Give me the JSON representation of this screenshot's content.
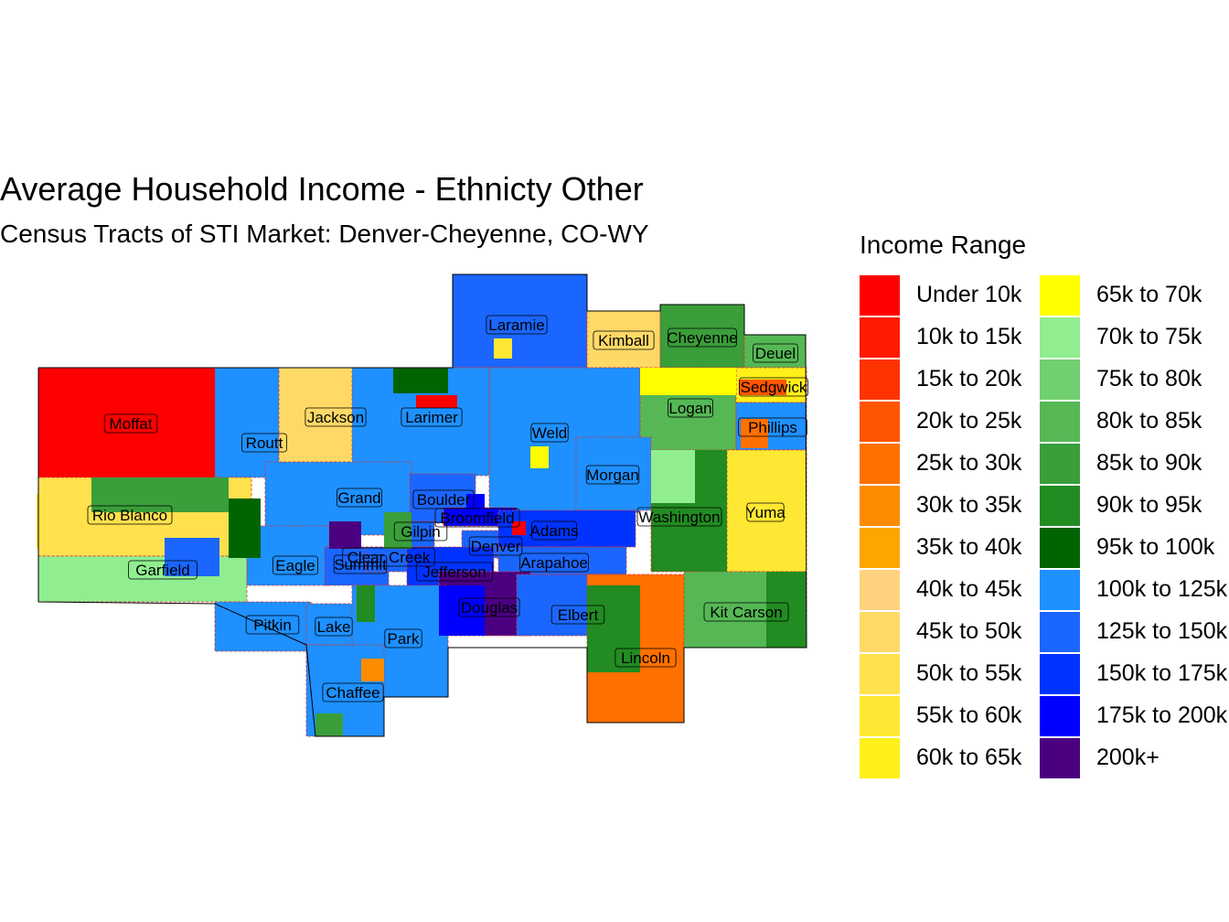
{
  "title": "Average Household Income - Ethnicty Other",
  "subtitle": "Census Tracts of STI Market: Denver-Cheyenne, CO-WY",
  "legend": {
    "title": "Income Range",
    "items": [
      {
        "label": "Under 10k",
        "color": "#FF0000"
      },
      {
        "label": "10k to 15k",
        "color": "#FF1A00"
      },
      {
        "label": "15k to 20k",
        "color": "#FF3300"
      },
      {
        "label": "20k to 25k",
        "color": "#FF5500"
      },
      {
        "label": "25k to 30k",
        "color": "#FF7000"
      },
      {
        "label": "30k to 35k",
        "color": "#FF8C00"
      },
      {
        "label": "35k to 40k",
        "color": "#FFA500"
      },
      {
        "label": "40k to 45k",
        "color": "#FFD27F"
      },
      {
        "label": "45k to 50k",
        "color": "#FFD966"
      },
      {
        "label": "50k to 55k",
        "color": "#FFE14D"
      },
      {
        "label": "55k to 60k",
        "color": "#FFE833"
      },
      {
        "label": "60k to 65k",
        "color": "#FFF01A"
      },
      {
        "label": "65k to 70k",
        "color": "#FFFF00"
      },
      {
        "label": "70k to 75k",
        "color": "#90EE90"
      },
      {
        "label": "75k to 80k",
        "color": "#70D070"
      },
      {
        "label": "80k to 85k",
        "color": "#55B855"
      },
      {
        "label": "85k to 90k",
        "color": "#3A9E3A"
      },
      {
        "label": "90k to 95k",
        "color": "#228B22"
      },
      {
        "label": "95k to 100k",
        "color": "#006400"
      },
      {
        "label": "100k to 125k",
        "color": "#1E90FF"
      },
      {
        "label": "125k to 150k",
        "color": "#1A66FF"
      },
      {
        "label": "150k to 175k",
        "color": "#0033FF"
      },
      {
        "label": "175k to 200k",
        "color": "#0000FF"
      },
      {
        "label": "200k+",
        "color": "#4B0082"
      }
    ]
  },
  "counties": [
    {
      "name": "Laramie",
      "fill": "#1A66FF"
    },
    {
      "name": "Kimball",
      "fill": "#FFD966"
    },
    {
      "name": "Cheyenne",
      "fill": "#3A9E3A"
    },
    {
      "name": "Deuel",
      "fill": "#55B855"
    },
    {
      "name": "Moffat",
      "fill": "#FF0000"
    },
    {
      "name": "Routt",
      "fill": "#1E90FF"
    },
    {
      "name": "Jackson",
      "fill": "#FFD966"
    },
    {
      "name": "Larimer",
      "fill": "#1E90FF"
    },
    {
      "name": "Weld",
      "fill": "#1E90FF"
    },
    {
      "name": "Logan",
      "fill": "#55B855"
    },
    {
      "name": "Sedgwick",
      "fill": "#FFF01A"
    },
    {
      "name": "Phillips",
      "fill": "#1E90FF"
    },
    {
      "name": "Rio Blanco",
      "fill": "#FFE14D"
    },
    {
      "name": "Grand",
      "fill": "#1E90FF"
    },
    {
      "name": "Boulder",
      "fill": "#1A66FF"
    },
    {
      "name": "Morgan",
      "fill": "#1E90FF"
    },
    {
      "name": "Washington",
      "fill": "#228B22"
    },
    {
      "name": "Yuma",
      "fill": "#FFE833"
    },
    {
      "name": "Garfield",
      "fill": "#90EE90"
    },
    {
      "name": "Eagle",
      "fill": "#1E90FF"
    },
    {
      "name": "Summit",
      "fill": "#1A66FF"
    },
    {
      "name": "Clear Creek",
      "fill": "#1A66FF"
    },
    {
      "name": "Gilpin",
      "fill": "#1A66FF"
    },
    {
      "name": "Broomfield",
      "fill": "#0000FF"
    },
    {
      "name": "Denver",
      "fill": "#1A66FF"
    },
    {
      "name": "Adams",
      "fill": "#0033FF"
    },
    {
      "name": "Arapahoe",
      "fill": "#1A66FF"
    },
    {
      "name": "Jefferson",
      "fill": "#0033FF"
    },
    {
      "name": "Douglas",
      "fill": "#4B0082"
    },
    {
      "name": "Elbert",
      "fill": "#1A66FF"
    },
    {
      "name": "Lincoln",
      "fill": "#FF7000"
    },
    {
      "name": "Kit Carson",
      "fill": "#55B855"
    },
    {
      "name": "Pitkin",
      "fill": "#1E90FF"
    },
    {
      "name": "Lake",
      "fill": "#1E90FF"
    },
    {
      "name": "Park",
      "fill": "#1E90FF"
    },
    {
      "name": "Chaffee",
      "fill": "#1E90FF"
    }
  ]
}
